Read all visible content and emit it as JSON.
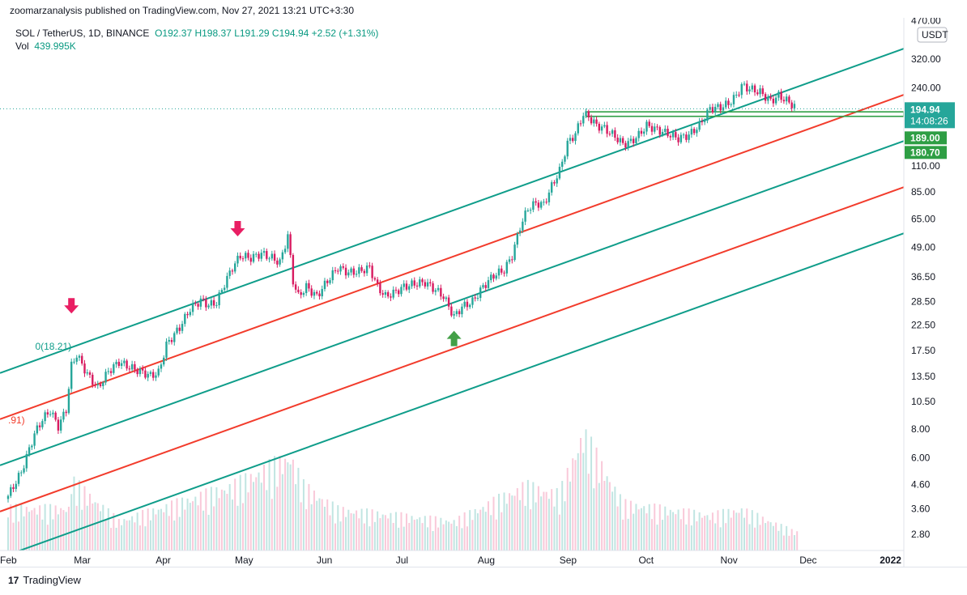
{
  "header": {
    "published": "zoomarzanalysis published on TradingView.com, Nov 27, 2021 13:21 UTC+3:30"
  },
  "legend": {
    "symbol": "SOL / TetherUS, 1D, BINANCE",
    "open": "O192.37",
    "high": "H198.37",
    "low": "L191.29",
    "close": "C194.94",
    "change": "+2.52 (+1.31%)",
    "vol_label": "Vol",
    "vol_value": "439.995K"
  },
  "footer": {
    "brand": "TradingView",
    "logo": "17"
  },
  "colors": {
    "up": "#26a69a",
    "down": "#d81b60",
    "channel_teal": "#0f9d8a",
    "channel_red": "#f23c2c",
    "zone_green": "#2e9e44",
    "arrow_pink": "#e91e63",
    "arrow_green": "#43a047"
  },
  "chart_data": {
    "type": "candlestick",
    "symbol": "SOL / TetherUS",
    "y_scale": "log",
    "y_range": [
      2.6,
      460
    ],
    "x_range": [
      "2021-02-01",
      "2022-01-04"
    ],
    "unit": "USDT",
    "y_ticks": [
      "470.00",
      "320.00",
      "240.00",
      "110.00",
      "85.00",
      "65.00",
      "49.00",
      "36.50",
      "28.50",
      "22.50",
      "17.50",
      "13.50",
      "10.50",
      "8.00",
      "6.00",
      "4.60",
      "3.60",
      "2.80"
    ],
    "x_ticks": [
      {
        "label": "Feb",
        "date": "2021-02-01"
      },
      {
        "label": "Mar",
        "date": "2021-03-01"
      },
      {
        "label": "Apr",
        "date": "2021-04-01"
      },
      {
        "label": "May",
        "date": "2021-05-01"
      },
      {
        "label": "Jun",
        "date": "2021-06-01"
      },
      {
        "label": "Jul",
        "date": "2021-07-01"
      },
      {
        "label": "Aug",
        "date": "2021-08-01"
      },
      {
        "label": "Sep",
        "date": "2021-09-01"
      },
      {
        "label": "Oct",
        "date": "2021-10-01"
      },
      {
        "label": "Nov",
        "date": "2021-11-01"
      },
      {
        "label": "Dec",
        "date": "2021-12-01"
      },
      {
        "label": "2022",
        "date": "2022-01-01"
      }
    ],
    "series": [
      {
        "name": "SOL / TetherUS, 1D, BINANCE",
        "points": [
          [
            "2021-02-01",
            4.1
          ],
          [
            "2021-02-06",
            5.2
          ],
          [
            "2021-02-11",
            7.6
          ],
          [
            "2021-02-14",
            8.8
          ],
          [
            "2021-02-17",
            9.6
          ],
          [
            "2021-02-20",
            8.2
          ],
          [
            "2021-02-23",
            9.7
          ],
          [
            "2021-02-25",
            15.0
          ],
          [
            "2021-02-27",
            16.8
          ],
          [
            "2021-03-03",
            13.8
          ],
          [
            "2021-03-07",
            12.0
          ],
          [
            "2021-03-11",
            14.2
          ],
          [
            "2021-03-15",
            15.6
          ],
          [
            "2021-03-19",
            14.8
          ],
          [
            "2021-03-23",
            14.2
          ],
          [
            "2021-03-27",
            13.6
          ],
          [
            "2021-03-30",
            14.0
          ],
          [
            "2021-04-02",
            18.5
          ],
          [
            "2021-04-07",
            22.0
          ],
          [
            "2021-04-11",
            26.5
          ],
          [
            "2021-04-15",
            28.8
          ],
          [
            "2021-04-18",
            27.5
          ],
          [
            "2021-04-21",
            28.2
          ],
          [
            "2021-04-24",
            34.0
          ],
          [
            "2021-04-27",
            40.0
          ],
          [
            "2021-04-30",
            45.0
          ],
          [
            "2021-05-04",
            44.0
          ],
          [
            "2021-05-08",
            46.0
          ],
          [
            "2021-05-12",
            44.0
          ],
          [
            "2021-05-15",
            42.0
          ],
          [
            "2021-05-18",
            55.0
          ],
          [
            "2021-05-20",
            35.0
          ],
          [
            "2021-05-22",
            30.0
          ],
          [
            "2021-05-25",
            33.0
          ],
          [
            "2021-05-29",
            30.0
          ],
          [
            "2021-06-02",
            35.0
          ],
          [
            "2021-06-06",
            40.0
          ],
          [
            "2021-06-10",
            38.0
          ],
          [
            "2021-06-14",
            38.5
          ],
          [
            "2021-06-18",
            40.0
          ],
          [
            "2021-06-21",
            33.0
          ],
          [
            "2021-06-24",
            30.0
          ],
          [
            "2021-06-27",
            31.0
          ],
          [
            "2021-07-01",
            33.0
          ],
          [
            "2021-07-05",
            34.0
          ],
          [
            "2021-07-09",
            34.5
          ],
          [
            "2021-07-13",
            32.0
          ],
          [
            "2021-07-16",
            30.0
          ],
          [
            "2021-07-20",
            24.5
          ],
          [
            "2021-07-23",
            27.0
          ],
          [
            "2021-07-27",
            28.5
          ],
          [
            "2021-07-31",
            33.0
          ],
          [
            "2021-08-04",
            37.0
          ],
          [
            "2021-08-08",
            39.0
          ],
          [
            "2021-08-11",
            45.0
          ],
          [
            "2021-08-14",
            60.0
          ],
          [
            "2021-08-17",
            72.0
          ],
          [
            "2021-08-20",
            76.0
          ],
          [
            "2021-08-23",
            75.0
          ],
          [
            "2021-08-26",
            90.0
          ],
          [
            "2021-08-29",
            105.0
          ],
          [
            "2021-09-01",
            138.0
          ],
          [
            "2021-09-04",
            152.0
          ],
          [
            "2021-09-07",
            185.0
          ],
          [
            "2021-09-09",
            180.0
          ],
          [
            "2021-09-12",
            165.0
          ],
          [
            "2021-09-15",
            160.0
          ],
          [
            "2021-09-19",
            148.0
          ],
          [
            "2021-09-22",
            137.0
          ],
          [
            "2021-09-25",
            140.0
          ],
          [
            "2021-09-28",
            150.0
          ],
          [
            "2021-10-01",
            165.0
          ],
          [
            "2021-10-05",
            158.0
          ],
          [
            "2021-10-09",
            152.0
          ],
          [
            "2021-10-13",
            145.0
          ],
          [
            "2021-10-17",
            150.0
          ],
          [
            "2021-10-21",
            165.0
          ],
          [
            "2021-10-25",
            195.0
          ],
          [
            "2021-10-29",
            198.0
          ],
          [
            "2021-11-01",
            205.0
          ],
          [
            "2021-11-04",
            222.0
          ],
          [
            "2021-11-06",
            245.0
          ],
          [
            "2021-11-09",
            238.0
          ],
          [
            "2021-11-13",
            230.0
          ],
          [
            "2021-11-17",
            210.0
          ],
          [
            "2021-11-20",
            222.0
          ],
          [
            "2021-11-24",
            208.0
          ],
          [
            "2021-11-27",
            194.94
          ]
        ]
      }
    ],
    "price_labels": [
      {
        "value": "194.94",
        "sub": "14:08:26",
        "color": "#26a69a"
      },
      {
        "value": "189.00",
        "color": "#2e9e44"
      },
      {
        "value": "180.70",
        "color": "#2e9e44"
      }
    ],
    "annotations": [
      {
        "text": "0(18.21)",
        "color": "#0f9d8a"
      },
      {
        "text": ".91)",
        "color": "#f23c2c"
      }
    ],
    "markers": [
      {
        "type": "arrow-down",
        "date": "2021-02-25",
        "price": 25.5
      },
      {
        "type": "arrow-down",
        "date": "2021-04-29",
        "price": 55.0
      },
      {
        "type": "arrow-up",
        "date": "2021-07-20",
        "price": 19.8
      }
    ],
    "channel": {
      "anchor_a": {
        "date": "2021-02-26",
        "price": 18.21
      },
      "anchor_b": {
        "date": "2021-11-26",
        "price": 240.0
      },
      "lines": [
        {
          "offset_log10": 0,
          "color": "teal"
        },
        {
          "offset_log10": -0.2,
          "color": "red"
        },
        {
          "offset_log10": -0.4,
          "color": "teal"
        },
        {
          "offset_log10": -0.6,
          "color": "red"
        },
        {
          "offset_log10": -0.8,
          "color": "teal"
        }
      ]
    },
    "zones": [
      {
        "from": 180.7,
        "to": 189.0,
        "start": "2021-09-08",
        "color": "#2e9e44"
      }
    ],
    "volume": [
      [
        "2021-02-25",
        0.6
      ],
      [
        "2021-03-15",
        0.25
      ],
      [
        "2021-04-27",
        0.55
      ],
      [
        "2021-05-19",
        0.8
      ],
      [
        "2021-05-24",
        0.55
      ],
      [
        "2021-06-06",
        0.35
      ],
      [
        "2021-07-20",
        0.25
      ],
      [
        "2021-08-16",
        0.55
      ],
      [
        "2021-08-29",
        0.48
      ],
      [
        "2021-09-07",
        1.0
      ],
      [
        "2021-09-22",
        0.4
      ],
      [
        "2021-10-25",
        0.3
      ],
      [
        "2021-11-06",
        0.35
      ],
      [
        "2021-11-26",
        0.16
      ]
    ]
  }
}
